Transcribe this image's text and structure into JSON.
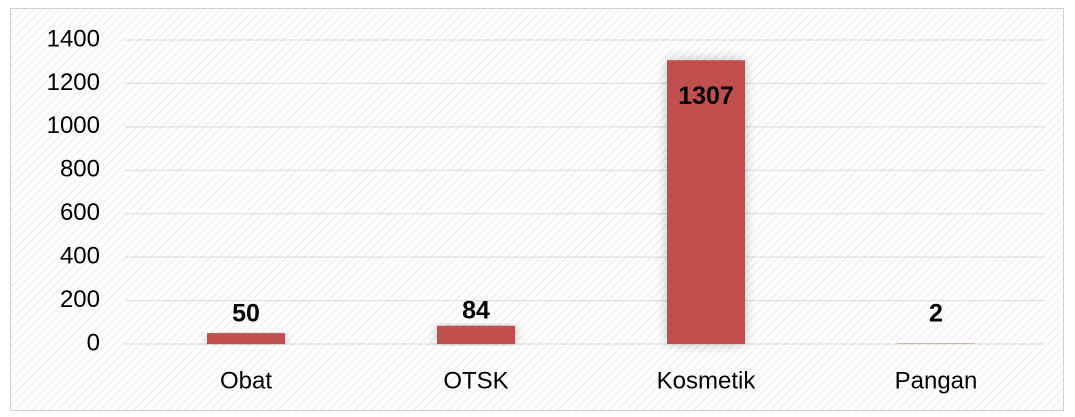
{
  "chart_data": {
    "type": "bar",
    "categories": [
      "Obat",
      "OTSK",
      "Kosmetik",
      "Pangan"
    ],
    "values": [
      50,
      84,
      1307,
      2
    ],
    "color": "#c0504d",
    "ylim": [
      0,
      1400
    ],
    "yticks": [
      0,
      200,
      400,
      600,
      800,
      1000,
      1200,
      1400
    ],
    "grid": true
  }
}
